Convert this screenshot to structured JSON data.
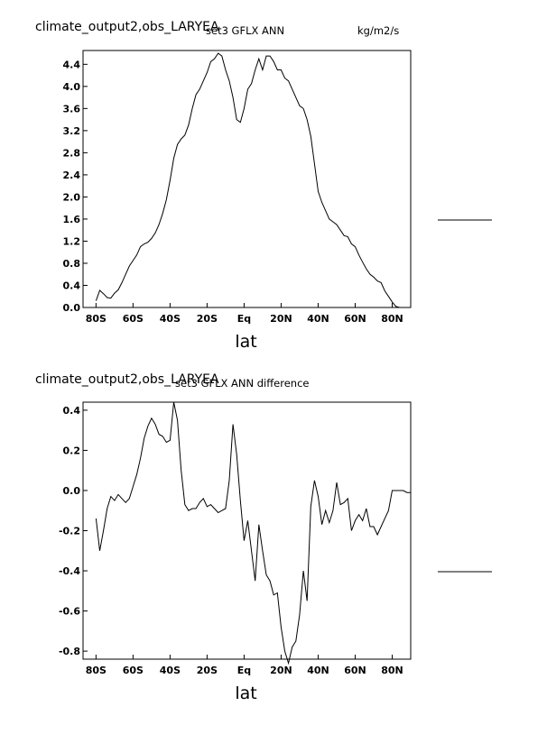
{
  "chart_data": [
    {
      "type": "line",
      "title_left": "climate_output2,obs_LARYEA",
      "title_center": "set3 GFLX ANN",
      "title_right": "kg/m2/s",
      "xlabel": "lat",
      "ylabel": "",
      "xlim": [
        -87,
        90
      ],
      "ylim": [
        0.0,
        4.65
      ],
      "x_ticks": [
        -80,
        -60,
        -40,
        -20,
        0,
        20,
        40,
        60,
        80
      ],
      "x_tick_labels": [
        "80S",
        "60S",
        "40S",
        "20S",
        "Eq",
        "20N",
        "40N",
        "60N",
        "80N"
      ],
      "y_ticks": [
        0.0,
        0.4,
        0.8,
        1.2,
        1.6,
        2.0,
        2.4,
        2.8,
        3.2,
        3.6,
        4.0,
        4.4
      ],
      "y_tick_labels": [
        "0.0",
        "0.4",
        "0.8",
        "1.2",
        "1.6",
        "2.0",
        "2.4",
        "2.8",
        "3.2",
        "3.6",
        "4.0",
        "4.4"
      ],
      "grid": false,
      "series": [
        {
          "x": [
            -80,
            -78,
            -76,
            -74,
            -72,
            -70,
            -68,
            -66,
            -64,
            -62,
            -60,
            -58,
            -56,
            -54,
            -52,
            -50,
            -48,
            -46,
            -44,
            -42,
            -40,
            -38,
            -36,
            -34,
            -32,
            -30,
            -28,
            -26,
            -24,
            -22,
            -20,
            -18,
            -16,
            -14,
            -12,
            -10,
            -8,
            -6,
            -4,
            -2,
            0,
            2,
            4,
            6,
            8,
            10,
            12,
            14,
            16,
            18,
            20,
            22,
            24,
            26,
            28,
            30,
            32,
            34,
            36,
            38,
            40,
            42,
            44,
            46,
            48,
            50,
            52,
            54,
            56,
            58,
            60,
            62,
            64,
            66,
            68,
            70,
            72,
            74,
            76,
            78,
            80,
            82,
            84,
            86,
            88,
            90
          ],
          "values": [
            0.12,
            0.31,
            0.25,
            0.18,
            0.17,
            0.26,
            0.32,
            0.45,
            0.6,
            0.75,
            0.85,
            0.95,
            1.1,
            1.15,
            1.18,
            1.25,
            1.35,
            1.5,
            1.7,
            1.95,
            2.3,
            2.7,
            2.95,
            3.05,
            3.12,
            3.3,
            3.6,
            3.85,
            3.95,
            4.1,
            4.25,
            4.45,
            4.5,
            4.6,
            4.55,
            4.3,
            4.1,
            3.8,
            3.4,
            3.35,
            3.6,
            3.95,
            4.05,
            4.3,
            4.5,
            4.3,
            4.55,
            4.55,
            4.45,
            4.3,
            4.3,
            4.15,
            4.1,
            3.95,
            3.8,
            3.65,
            3.6,
            3.4,
            3.1,
            2.6,
            2.1,
            1.9,
            1.75,
            1.6,
            1.55,
            1.5,
            1.4,
            1.3,
            1.28,
            1.15,
            1.1,
            0.95,
            0.82,
            0.7,
            0.6,
            0.55,
            0.48,
            0.45,
            0.3,
            0.2,
            0.1,
            0.02,
            0.0,
            0.0,
            0.0,
            0.0
          ]
        }
      ]
    },
    {
      "type": "line",
      "title_left": "climate_output2,obs_LARYEA",
      "title_center": "set3 GFLX ANN difference",
      "title_right": "",
      "xlabel": "lat",
      "ylabel": "",
      "xlim": [
        -87,
        90
      ],
      "ylim": [
        -0.84,
        0.44
      ],
      "x_ticks": [
        -80,
        -60,
        -40,
        -20,
        0,
        20,
        40,
        60,
        80
      ],
      "x_tick_labels": [
        "80S",
        "60S",
        "40S",
        "20S",
        "Eq",
        "20N",
        "40N",
        "60N",
        "80N"
      ],
      "y_ticks": [
        -0.8,
        -0.6,
        -0.4,
        -0.2,
        0.0,
        0.2,
        0.4
      ],
      "y_tick_labels": [
        "-0.8",
        "-0.6",
        "-0.4",
        "-0.2",
        "0.0",
        "0.2",
        "0.4"
      ],
      "grid": false,
      "series": [
        {
          "x": [
            -80,
            -78,
            -76,
            -74,
            -72,
            -70,
            -68,
            -66,
            -64,
            -62,
            -60,
            -58,
            -56,
            -54,
            -52,
            -50,
            -48,
            -46,
            -44,
            -42,
            -40,
            -38,
            -36,
            -34,
            -32,
            -30,
            -28,
            -26,
            -24,
            -22,
            -20,
            -18,
            -16,
            -14,
            -12,
            -10,
            -8,
            -6,
            -4,
            -2,
            0,
            2,
            4,
            6,
            8,
            10,
            12,
            14,
            16,
            18,
            20,
            22,
            24,
            26,
            28,
            30,
            32,
            34,
            36,
            38,
            40,
            42,
            44,
            46,
            48,
            50,
            52,
            54,
            56,
            58,
            60,
            62,
            64,
            66,
            68,
            70,
            72,
            74,
            76,
            78,
            80,
            82,
            84,
            86,
            88,
            90
          ],
          "values": [
            -0.14,
            -0.3,
            -0.2,
            -0.09,
            -0.03,
            -0.05,
            -0.02,
            -0.04,
            -0.06,
            -0.04,
            0.02,
            0.08,
            0.16,
            0.26,
            0.32,
            0.36,
            0.33,
            0.28,
            0.27,
            0.24,
            0.25,
            0.44,
            0.35,
            0.1,
            -0.07,
            -0.1,
            -0.09,
            -0.09,
            -0.06,
            -0.04,
            -0.08,
            -0.07,
            -0.09,
            -0.11,
            -0.1,
            -0.09,
            0.05,
            0.33,
            0.18,
            -0.05,
            -0.25,
            -0.15,
            -0.3,
            -0.45,
            -0.17,
            -0.3,
            -0.42,
            -0.45,
            -0.52,
            -0.51,
            -0.68,
            -0.8,
            -0.86,
            -0.78,
            -0.75,
            -0.62,
            -0.4,
            -0.55,
            -0.08,
            0.05,
            -0.03,
            -0.17,
            -0.1,
            -0.16,
            -0.1,
            0.04,
            -0.07,
            -0.06,
            -0.04,
            -0.2,
            -0.15,
            -0.12,
            -0.15,
            -0.09,
            -0.18,
            -0.18,
            -0.22,
            -0.18,
            -0.14,
            -0.1,
            0.0,
            0.0,
            0.0,
            0.0,
            -0.01,
            -0.01
          ]
        }
      ]
    }
  ]
}
